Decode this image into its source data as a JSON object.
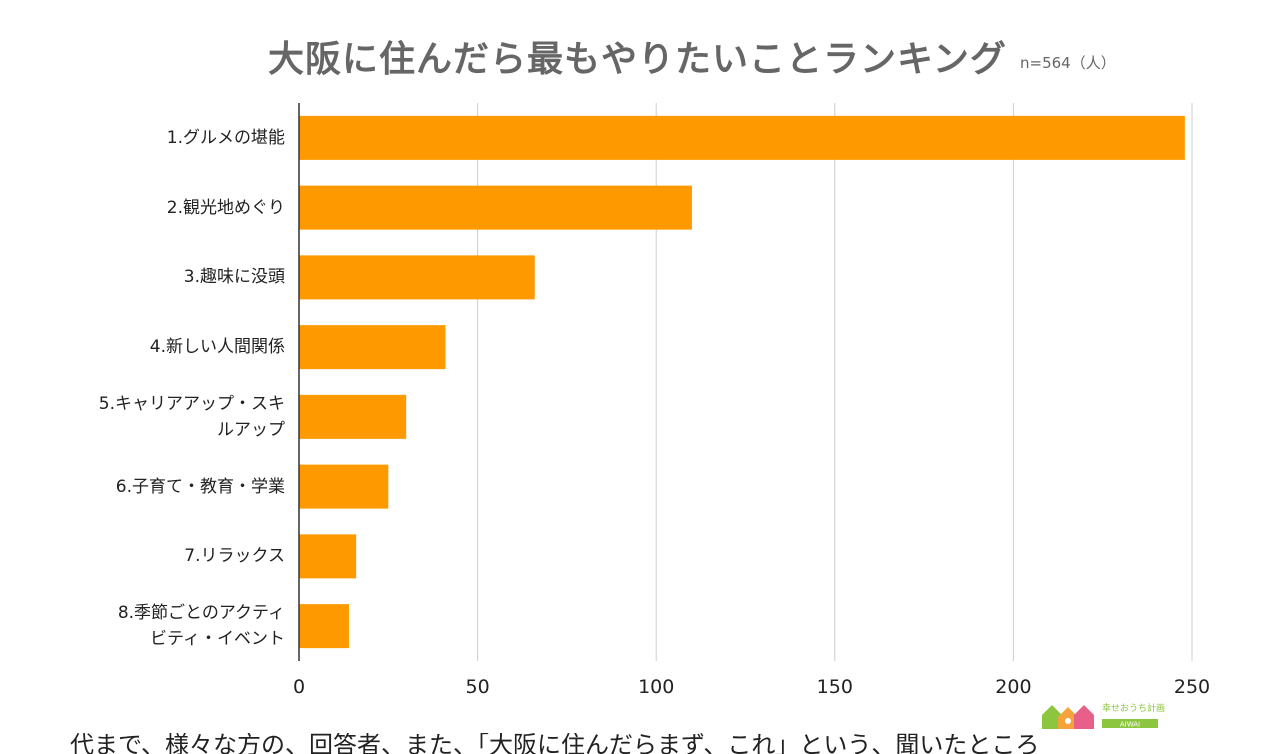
{
  "chart_data": {
    "type": "bar",
    "orientation": "horizontal",
    "title": "大阪に住んだら最もやりたいことランキング",
    "subtitle": "n=564（人）",
    "categories": [
      "1.グルメの堪能",
      "2.観光地めぐり",
      "3.趣味に没頭",
      "4.新しい人間関係",
      "5.キャリアアップ・スキルアップ",
      "6.子育て・教育・学業",
      "7.リラックス",
      "8.季節ごとのアクティビティ・イベント"
    ],
    "category_lines": [
      [
        "1.グルメの堪能"
      ],
      [
        "2.観光地めぐり"
      ],
      [
        "3.趣味に没頭"
      ],
      [
        "4.新しい人間関係"
      ],
      [
        "5.キャリアアップ・スキ",
        "ルアップ"
      ],
      [
        "6.子育て・教育・学業"
      ],
      [
        "7.リラックス"
      ],
      [
        "8.季節ごとのアクティ",
        "ビティ・イベント"
      ]
    ],
    "values": [
      248,
      110,
      66,
      41,
      30,
      25,
      16,
      14
    ],
    "xlim": [
      0,
      250
    ],
    "xticks": [
      0,
      50,
      100,
      150,
      200,
      250
    ],
    "grid": true,
    "bar_color": "#ff9900",
    "grid_color": "#cccccc",
    "title_color": "#666666"
  },
  "logo": {
    "text": "幸せおうち計画",
    "sub_text": "AIWAI"
  },
  "bottom_text": "代まで、様々な方の、回答者、また、「大阪に住んだらまず、これ」という、聞いたところ"
}
